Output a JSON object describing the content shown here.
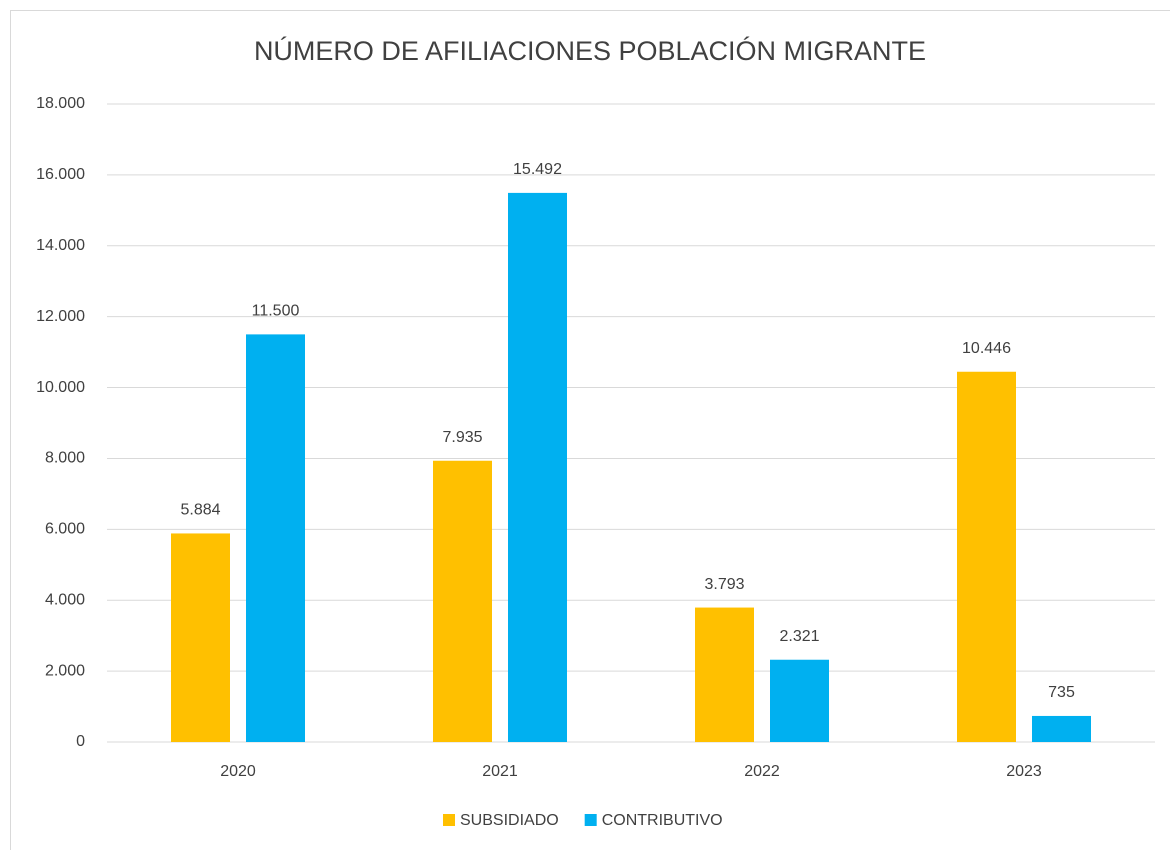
{
  "chart_data": {
    "type": "bar",
    "title": "NÚMERO DE AFILIACIONES POBLACIÓN MIGRANTE",
    "categories": [
      "2020",
      "2021",
      "2022",
      "2023"
    ],
    "series": [
      {
        "name": "SUBSIDIADO",
        "color": "#FFC000",
        "values": [
          5884,
          7935,
          3793,
          10446
        ],
        "value_labels": [
          "5.884",
          "7.935",
          "3.793",
          "10.446"
        ]
      },
      {
        "name": "CONTRIBUTIVO",
        "color": "#00B0F0",
        "values": [
          11500,
          15492,
          2321,
          735
        ],
        "value_labels": [
          "11.500",
          "15.492",
          "2.321",
          "735"
        ]
      }
    ],
    "ylim": [
      0,
      18000
    ],
    "yticks": [
      0,
      {
        "value": 2000,
        "label": "2.000"
      },
      {
        "value": 4000,
        "label": "4.000"
      },
      {
        "value": 6000,
        "label": "6.000"
      },
      {
        "value": 8000,
        "label": "8.000"
      },
      {
        "value": 10000,
        "label": "10.000"
      },
      {
        "value": 12000,
        "label": "12.000"
      },
      {
        "value": 14000,
        "label": "14.000"
      },
      {
        "value": 16000,
        "label": "16.000"
      },
      {
        "value": 18000,
        "label": "18.000"
      }
    ],
    "grid": true,
    "legend": "bottom"
  }
}
